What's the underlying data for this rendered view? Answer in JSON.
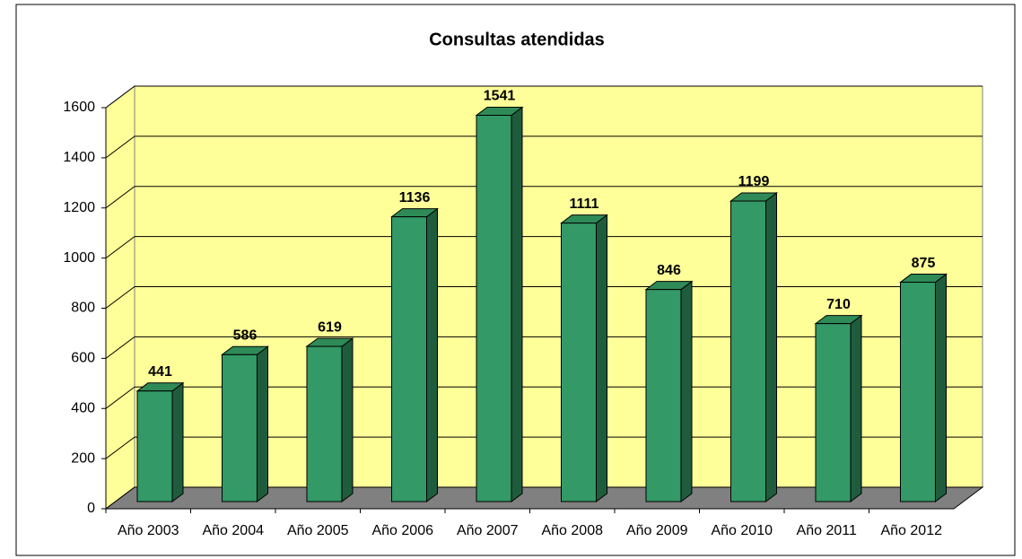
{
  "chart_data": {
    "type": "bar3d",
    "title": "Consultas atendidas",
    "categories": [
      "Año 2003",
      "Año 2004",
      "Año 2005",
      "Año 2006",
      "Año 2007",
      "Año 2008",
      "Año 2009",
      "Año 2010",
      "Año 2011",
      "Año 2012"
    ],
    "values": [
      441,
      586,
      619,
      1136,
      1541,
      1111,
      846,
      1199,
      710,
      875
    ],
    "color": "#339966",
    "ylim": [
      0,
      1600
    ],
    "yticks": [
      0,
      200,
      400,
      600,
      800,
      1000,
      1200,
      1400,
      1600
    ],
    "grid": true
  }
}
